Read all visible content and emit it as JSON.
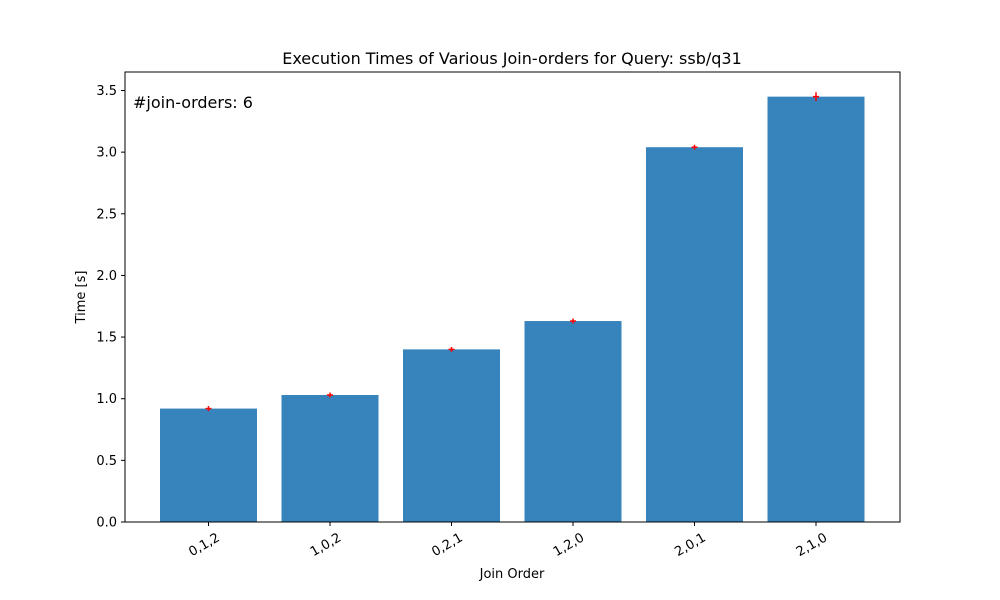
{
  "chart_data": {
    "type": "bar",
    "title": "Execution Times of Various Join-orders for Query: ssb/q31",
    "xlabel": "Join Order",
    "ylabel": "Time [s]",
    "annotation": "#join-orders: 6",
    "categories": [
      "0,1,2",
      "1,0,2",
      "0,2,1",
      "1,2,0",
      "2,0,1",
      "2,1,0"
    ],
    "values": [
      0.92,
      1.03,
      1.4,
      1.63,
      3.04,
      3.45
    ],
    "error": [
      0.02,
      0.02,
      0.02,
      0.02,
      0.02,
      0.035
    ],
    "ylim": [
      0,
      3.65
    ],
    "yticks": [
      0.0,
      0.5,
      1.0,
      1.5,
      2.0,
      2.5,
      3.0,
      3.5
    ],
    "ytick_labels": [
      "0.0",
      "0.5",
      "1.0",
      "1.5",
      "2.0",
      "2.5",
      "3.0",
      "3.5"
    ],
    "grid": false,
    "colors": {
      "bar": "#3784bc",
      "error": "#ff0000"
    }
  }
}
